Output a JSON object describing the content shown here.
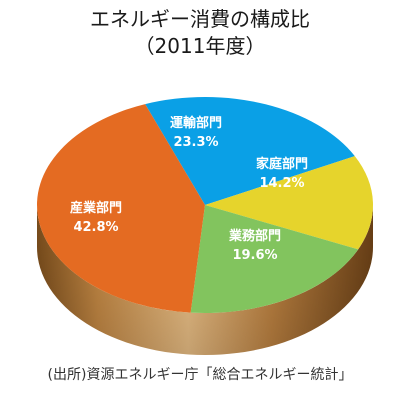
{
  "title": "エネルギー消費の構成比",
  "subtitle": "（2011年度）",
  "source": "(出所)資源エネルギー庁「総合エネルギー統計」",
  "chart_data": {
    "type": "pie",
    "title": "エネルギー消費の構成比",
    "subtitle": "（2011年度）",
    "slices": [
      {
        "name": "運輸部門",
        "value": 23.3,
        "label": "23.3%",
        "color": "#0aa0e6"
      },
      {
        "name": "家庭部門",
        "value": 14.2,
        "label": "14.2%",
        "color": "#e6d42c"
      },
      {
        "name": "業務部門",
        "value": 19.6,
        "label": "19.6%",
        "color": "#82c45e"
      },
      {
        "name": "産業部門",
        "value": 42.8,
        "label": "42.8%",
        "color": "#e46b22"
      }
    ],
    "rim_color": "#c98a3d"
  }
}
